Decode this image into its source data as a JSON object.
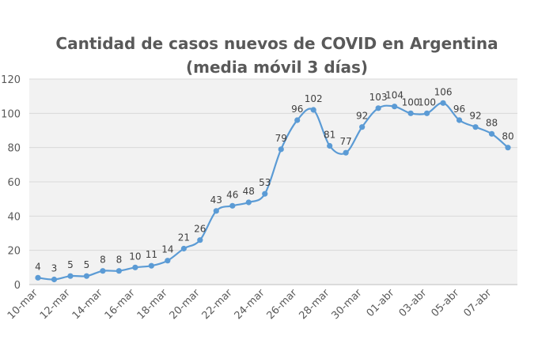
{
  "chart_data": {
    "type": "line",
    "title": "Cantidad de casos nuevos de COVID en Argentina",
    "subtitle": "(media móvil 3 días)",
    "xlabel": "",
    "ylabel": "",
    "ylim": [
      0,
      120
    ],
    "yticks": [
      0,
      20,
      40,
      60,
      80,
      100,
      120
    ],
    "grid": true,
    "x": [
      "10-mar",
      "11-mar",
      "12-mar",
      "13-mar",
      "14-mar",
      "15-mar",
      "16-mar",
      "17-mar",
      "18-mar",
      "19-mar",
      "20-mar",
      "21-mar",
      "22-mar",
      "23-mar",
      "24-mar",
      "25-mar",
      "26-mar",
      "27-mar",
      "28-mar",
      "29-mar",
      "30-mar",
      "31-mar",
      "01-abr",
      "02-abr",
      "03-abr",
      "04-abr",
      "05-abr",
      "06-abr",
      "07-abr",
      "08-abr"
    ],
    "xtick_labels": [
      "10-mar",
      "12-mar",
      "14-mar",
      "16-mar",
      "18-mar",
      "20-mar",
      "22-mar",
      "24-mar",
      "26-mar",
      "28-mar",
      "30-mar",
      "01-abr",
      "03-abr",
      "05-abr",
      "07-abr"
    ],
    "series": [
      {
        "name": "Casos nuevos (media móvil 3 días)",
        "color": "#5b9bd5",
        "values": [
          4,
          3,
          5,
          5,
          8,
          8,
          10,
          11,
          14,
          21,
          26,
          43,
          46,
          48,
          53,
          79,
          96,
          102,
          81,
          77,
          92,
          103,
          104,
          100,
          100,
          106,
          96,
          92,
          88,
          80
        ]
      }
    ]
  }
}
